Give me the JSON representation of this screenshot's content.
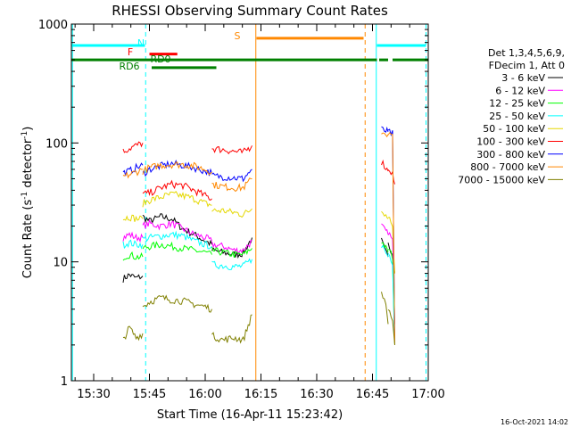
{
  "chart_data": {
    "type": "line",
    "title": "RHESSI Observing Summary Count Rates",
    "xlabel": "Start Time (16-Apr-11 15:23:42)",
    "ylabel_main": "Count Rate (s",
    "ylabel_sup1": "-1",
    "ylabel_mid": " detector",
    "ylabel_sup2": "-1",
    "ylabel_end": ")",
    "y_scale": "log",
    "ylim": [
      1,
      1000
    ],
    "xlim_minutes": [
      15.4,
      17.0
    ],
    "x_ticks": [
      {
        "label": "15:30",
        "value": 15.5
      },
      {
        "label": "15:45",
        "value": 15.75
      },
      {
        "label": "16:00",
        "value": 16.0
      },
      {
        "label": "16:15",
        "value": 16.25
      },
      {
        "label": "16:30",
        "value": 16.5
      },
      {
        "label": "16:45",
        "value": 16.75
      },
      {
        "label": "17:00",
        "value": 17.0
      }
    ],
    "y_ticks": [
      {
        "label": "1",
        "value": 1
      },
      {
        "label": "10",
        "value": 10
      },
      {
        "label": "100",
        "value": 100
      },
      {
        "label": "1000",
        "value": 1000
      }
    ],
    "timestamp": "16-Oct-2021 14:02",
    "legend_header": [
      "Det 1,3,4,5,6,9,",
      "FDecim 1, Att 0"
    ],
    "series": [
      {
        "name": "3 - 6 keV",
        "color": "#000000",
        "segments": [
          {
            "x": [
              15.632,
              15.66,
              15.69,
              15.72
            ],
            "y": [
              7.2,
              7.8,
              7.3,
              7.6
            ]
          },
          {
            "x": [
              15.72,
              15.75,
              15.8,
              15.85,
              15.9,
              15.95,
              16.0,
              16.03
            ],
            "y": [
              24,
              22,
              24,
              23,
              19,
              17,
              15,
              14
            ]
          },
          {
            "x": [
              16.03,
              16.08,
              16.13,
              16.17,
              16.21
            ],
            "y": [
              12.5,
              12,
              11.5,
              11.8,
              16
            ]
          },
          {
            "x": [
              16.79,
              16.81,
              16.82
            ],
            "y": [
              15,
              12,
              11
            ]
          },
          {
            "x": [
              16.82,
              16.84,
              16.85
            ],
            "y": [
              14,
              12,
              8
            ]
          }
        ]
      },
      {
        "name": "6 - 12 keV",
        "color": "#ff00ff",
        "segments": [
          {
            "x": [
              15.632,
              15.66,
              15.69,
              15.72
            ],
            "y": [
              16,
              17,
              16,
              16
            ]
          },
          {
            "x": [
              15.72,
              15.75,
              15.8,
              15.85,
              15.9,
              15.95,
              16.0,
              16.03
            ],
            "y": [
              20,
              21,
              20,
              21,
              19,
              17,
              16,
              15
            ]
          },
          {
            "x": [
              16.03,
              16.08,
              16.13,
              16.17,
              16.21
            ],
            "y": [
              14,
              13.5,
              12.5,
              12.5,
              15
            ]
          },
          {
            "x": [
              16.79,
              16.81,
              16.82
            ],
            "y": [
              20,
              18,
              17
            ]
          },
          {
            "x": [
              16.82,
              16.84,
              16.85
            ],
            "y": [
              18,
              15,
              3
            ]
          }
        ]
      },
      {
        "name": "12 - 25 keV",
        "color": "#00ff00",
        "segments": [
          {
            "x": [
              15.632,
              15.66,
              15.69,
              15.72
            ],
            "y": [
              11,
              11.5,
              11,
              11
            ]
          },
          {
            "x": [
              15.72,
              15.75,
              15.8,
              15.85,
              15.9,
              15.95,
              16.0,
              16.03
            ],
            "y": [
              13,
              13.5,
              14,
              13.5,
              13,
              12.5,
              12,
              11.5
            ]
          },
          {
            "x": [
              16.03,
              16.08,
              16.13,
              16.17,
              16.21
            ],
            "y": [
              12.5,
              12,
              11.5,
              11.5,
              13
            ]
          },
          {
            "x": [
              16.79,
              16.81,
              16.82
            ],
            "y": [
              15,
              13,
              12
            ]
          },
          {
            "x": [
              16.82,
              16.84,
              16.85
            ],
            "y": [
              13,
              11,
              2
            ]
          }
        ]
      },
      {
        "name": "25 - 50 keV",
        "color": "#00ffff",
        "segments": [
          {
            "x": [
              15.632,
              15.66,
              15.69,
              15.72
            ],
            "y": [
              14,
              14.5,
              14,
              14
            ]
          },
          {
            "x": [
              15.72,
              15.75,
              15.8,
              15.85,
              15.9,
              15.95,
              16.0,
              16.03
            ],
            "y": [
              15.5,
              16,
              16.5,
              17,
              16.5,
              15,
              14,
              13.5
            ]
          },
          {
            "x": [
              16.03,
              16.08,
              16.13,
              16.17,
              16.21
            ],
            "y": [
              9.5,
              9.3,
              9.1,
              9.2,
              10.5
            ]
          },
          {
            "x": [
              16.79,
              16.81,
              16.82
            ],
            "y": [
              14,
              12,
              11
            ]
          },
          {
            "x": [
              16.82,
              16.84,
              16.85
            ],
            "y": [
              12,
              10,
              2
            ]
          }
        ]
      },
      {
        "name": "50 - 100 keV",
        "color": "#e5d800",
        "segments": [
          {
            "x": [
              15.632,
              15.66,
              15.69,
              15.72
            ],
            "y": [
              23,
              24,
              23,
              23
            ]
          },
          {
            "x": [
              15.72,
              15.75,
              15.8,
              15.85,
              15.9,
              15.95,
              16.0,
              16.03
            ],
            "y": [
              31,
              33,
              35,
              37,
              36,
              34,
              31,
              30
            ]
          },
          {
            "x": [
              16.03,
              16.08,
              16.13,
              16.17,
              16.21
            ],
            "y": [
              27,
              27,
              26,
              25,
              28
            ]
          },
          {
            "x": [
              16.79,
              16.81,
              16.82
            ],
            "y": [
              28,
              25,
              23
            ]
          },
          {
            "x": [
              16.82,
              16.84,
              16.85
            ],
            "y": [
              25,
              20,
              8
            ]
          }
        ]
      },
      {
        "name": "100 - 300 keV",
        "color": "#ff0000",
        "segments": [
          {
            "x": [
              15.632,
              15.66,
              15.69,
              15.72
            ],
            "y": [
              85,
              90,
              95,
              100
            ]
          },
          {
            "x": [
              15.72,
              15.75,
              15.8,
              15.85,
              15.9,
              15.95,
              16.0,
              16.03
            ],
            "y": [
              37,
              38,
              42,
              45,
              44,
              40,
              36,
              34
            ]
          },
          {
            "x": [
              16.03,
              16.08,
              16.13,
              16.17,
              16.21
            ],
            "y": [
              90,
              88,
              85,
              83,
              95
            ]
          },
          {
            "x": [
              16.79,
              16.81,
              16.82
            ],
            "y": [
              70,
              62,
              58
            ]
          },
          {
            "x": [
              16.82,
              16.84,
              16.85
            ],
            "y": [
              62,
              55,
              45
            ]
          }
        ]
      },
      {
        "name": "300 - 800 keV",
        "color": "#0000ff",
        "segments": [
          {
            "x": [
              15.632,
              15.66,
              15.69,
              15.72
            ],
            "y": [
              56,
              58,
              62,
              65
            ]
          },
          {
            "x": [
              15.72,
              15.75,
              15.8,
              15.85,
              15.9,
              15.95,
              16.0,
              16.03
            ],
            "y": [
              55,
              60,
              64,
              67,
              65,
              62,
              58,
              56
            ]
          },
          {
            "x": [
              16.03,
              16.08,
              16.13,
              16.17,
              16.21
            ],
            "y": [
              53,
              52,
              51,
              50,
              60
            ]
          },
          {
            "x": [
              16.79,
              16.81,
              16.82
            ],
            "y": [
              130,
              126,
              124
            ]
          },
          {
            "x": [
              16.82,
              16.84,
              16.85
            ],
            "y": [
              124,
              120,
              2
            ]
          }
        ]
      },
      {
        "name": "800 - 7000 keV",
        "color": "#ff8800",
        "segments": [
          {
            "x": [
              15.632,
              15.66,
              15.69,
              15.72
            ],
            "y": [
              52,
              54,
              57,
              60
            ]
          },
          {
            "x": [
              15.72,
              15.75,
              15.8,
              15.85,
              15.9,
              15.95,
              16.0,
              16.03
            ],
            "y": [
              58,
              62,
              65,
              66,
              66,
              64,
              60,
              57
            ]
          },
          {
            "x": [
              16.03,
              16.08,
              16.13,
              16.17,
              16.21
            ],
            "y": [
              45,
              43,
              42,
              42,
              50
            ]
          },
          {
            "x": [
              16.79,
              16.81,
              16.82
            ],
            "y": [
              125,
              120,
              118
            ]
          },
          {
            "x": [
              16.82,
              16.84,
              16.85
            ],
            "y": [
              118,
              115,
              2
            ]
          }
        ]
      },
      {
        "name": "7000 - 15000 keV",
        "color": "#808000",
        "segments": [
          {
            "x": [
              15.632,
              15.66,
              15.69,
              15.72
            ],
            "y": [
              2.2,
              2.8,
              2.3,
              2.5
            ]
          },
          {
            "x": [
              15.72,
              15.75,
              15.8,
              15.85,
              15.9,
              15.95,
              16.0,
              16.03
            ],
            "y": [
              4.2,
              4.6,
              5.0,
              4.8,
              4.7,
              4.4,
              4.2,
              4.0
            ]
          },
          {
            "x": [
              16.03,
              16.08,
              16.13,
              16.17,
              16.21
            ],
            "y": [
              2.4,
              2.2,
              2.3,
              2.2,
              3.6
            ]
          },
          {
            "x": [
              16.79,
              16.81,
              16.82
            ],
            "y": [
              5.5,
              4.5,
              3
            ]
          },
          {
            "x": [
              16.82,
              16.84,
              16.85
            ],
            "y": [
              4,
              3,
              2
            ]
          }
        ]
      }
    ],
    "state_bars": [
      {
        "label": "N",
        "color": "#00ffff",
        "y": 660,
        "segments": [
          [
            15.4,
            15.73
          ],
          [
            16.77,
            16.99
          ]
        ]
      },
      {
        "label": "F",
        "color": "#ff0000",
        "y": 560,
        "segments": [
          [
            15.75,
            15.875
          ]
        ]
      },
      {
        "label": "S",
        "color": "#ff8800",
        "y": 760,
        "segments": [
          [
            16.23,
            16.71
          ]
        ]
      },
      {
        "label": "RD0",
        "color": "#008000",
        "y": 500,
        "segments": [
          [
            15.4,
            16.77
          ],
          [
            16.78,
            16.82
          ],
          [
            16.84,
            17.0
          ]
        ]
      },
      {
        "label": "RD6",
        "color": "#008000",
        "y": 430,
        "segments": [
          [
            15.76,
            16.05
          ]
        ]
      }
    ],
    "vlines": [
      {
        "x": 15.405,
        "color": "#00ffff",
        "style": "solid"
      },
      {
        "x": 15.733,
        "color": "#00ffff",
        "style": "dashed"
      },
      {
        "x": 16.227,
        "color": "#ff8800",
        "style": "solid"
      },
      {
        "x": 16.717,
        "color": "#ff8800",
        "style": "dashed"
      },
      {
        "x": 16.767,
        "color": "#00ffff",
        "style": "solid"
      },
      {
        "x": 16.99,
        "color": "#00ffff",
        "style": "dashed"
      }
    ]
  }
}
